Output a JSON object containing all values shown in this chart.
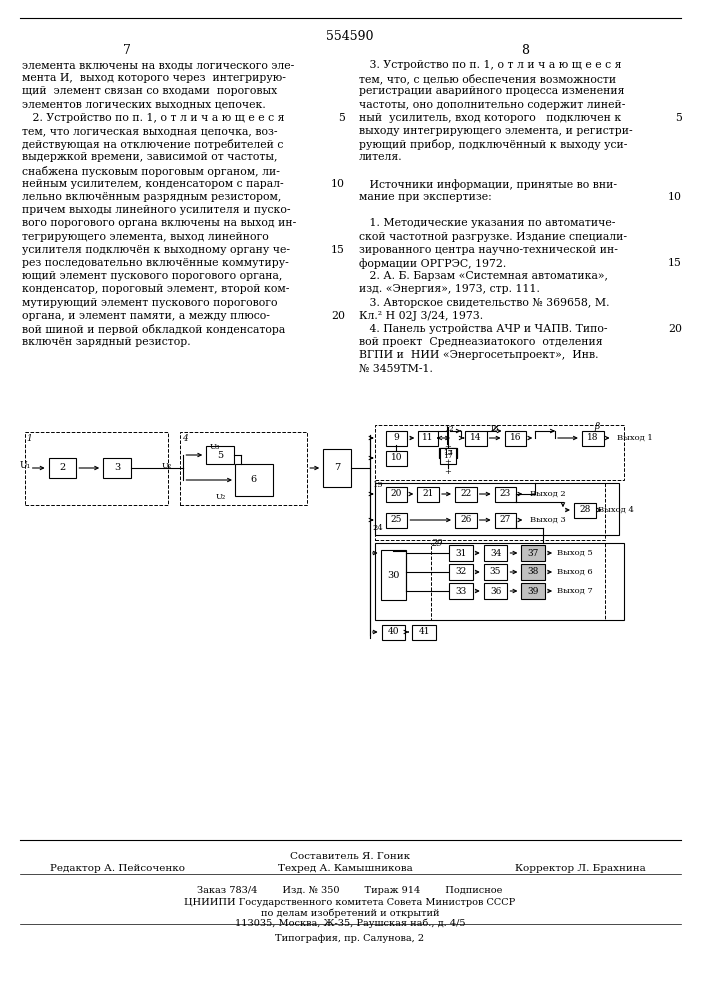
{
  "patent_number": "554590",
  "page_left": "7",
  "page_right": "8",
  "bg_color": "#ffffff",
  "col_left_text": [
    "элемента включены на входы логического эле-",
    "мента И,  выход которого через  интегрирую-",
    "щий  элемент связан со входами  пороговых",
    "элементов логических выходных цепочек.",
    "   2. Устройство по п. 1, о т л и ч а ю щ е е с я",
    "тем, что логическая выходная цепочка, воз-",
    "действующая на отключение потребителей с",
    "выдержкой времени, зависимой от частоты,",
    "снабжена пусковым пороговым органом, ли-",
    "нейным усилителем, конденсатором с парал-",
    "лельно включённым разрядным резистором,",
    "причем выходы линейного усилителя и пуско-",
    "вого порогового органа включены на выход ин-",
    "тегрирующего элемента, выход линейного",
    "усилителя подключён к выходному органу че-",
    "рез последовательно включённые коммутиру-",
    "ющий элемент пускового порогового органа,",
    "конденсатор, пороговый элемент, второй ком-",
    "мутирующий элемент пускового порогового",
    "органа, и элемент памяти, а между плюсо-",
    "вой шиной и первой обкладкой конденсатора",
    "включён зарядный резистор."
  ],
  "col_right_text": [
    "   3. Устройство по п. 1, о т л и ч а ю щ е е с я",
    "тем, что, с целью обеспечения возможности",
    "регистрации аварийного процесса изменения",
    "частоты, оно дополнительно содержит линей-",
    "ный  усилитель, вход которого   подключен к",
    "выходу интегрирующего элемента, и регистри-",
    "рующий прибор, подключённый к выходу уси-",
    "лителя.",
    "",
    "   Источники информации, принятые во вни-",
    "мание при экспертизе:",
    "",
    "   1. Методические указания по автоматиче-",
    "ской частотной разгрузке. Издание специали-",
    "зированного центра научно-технической ин-",
    "формации ОРГРЭС, 1972.",
    "   2. А. Б. Барзам «Системная автоматика»,",
    "изд. «Энергия», 1973, стр. 111.",
    "   3. Авторское свидетельство № 369658, М.",
    "Кл.² Н 02J 3/24, 1973.",
    "   4. Панель устройства АЧР и ЧАПВ. Типо-",
    "вой проект  Среднеазиатокого  отделения",
    "ВГПИ и  НИИ «Энергосетьпроект»,  Инв.",
    "№ 3459ТМ-1."
  ],
  "line_numbers_left": [
    "",
    "",
    "",
    "",
    "5",
    "",
    "",
    "",
    "",
    "10",
    "",
    "",
    "",
    "",
    "15",
    "",
    "",
    "",
    "",
    "20",
    "",
    ""
  ],
  "line_numbers_right": [
    "",
    "",
    "",
    "",
    "5",
    "",
    "",
    "",
    "",
    "",
    "",
    "",
    "",
    "",
    "15",
    "",
    "",
    "",
    "",
    "",
    "",
    "",
    "",
    ""
  ],
  "footer_composer": "Составитель Я. Гоник",
  "footer_editor": "Редактор А. Пейсоченко",
  "footer_techred": "Техред А. Камышникова",
  "footer_corrector": "Корректор Л. Брахнина",
  "footer_line1": "Заказ 783/4        Изд. № 350        Тираж 914        Подписное",
  "footer_line2": "ЦНИИПИ Государственного комитета Совета Министров СССР",
  "footer_line3": "по делам изобретений и открытий",
  "footer_line4": "113035, Москва, Ж-35, Раушская наб., д. 4/5",
  "footer_line5": "Типография, пр. Салунова, 2"
}
